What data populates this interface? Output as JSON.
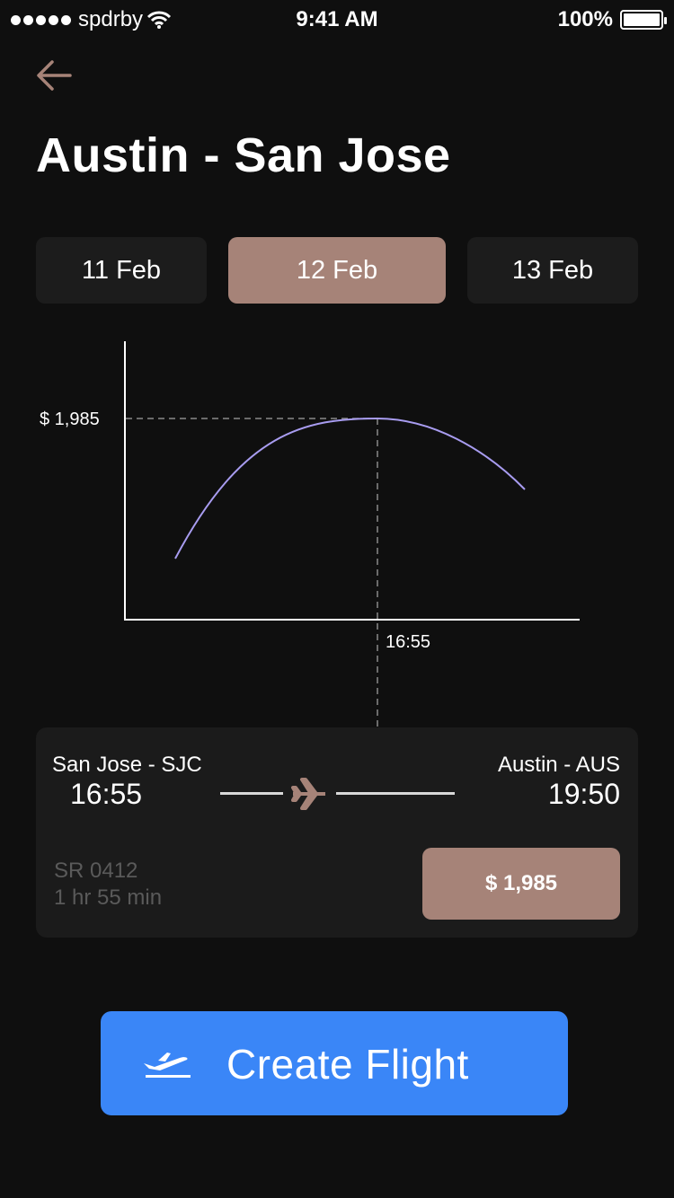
{
  "status_bar": {
    "carrier": "spdrby",
    "time": "9:41 AM",
    "battery": "100%"
  },
  "header": {
    "title": "Austin - San Jose"
  },
  "date_tabs": [
    {
      "label": "11 Feb",
      "active": false
    },
    {
      "label": "12 Feb",
      "active": true
    },
    {
      "label": "13 Feb",
      "active": false
    }
  ],
  "chart_data": {
    "type": "line",
    "highlight_price": "$ 1,985",
    "highlight_time": "16:55",
    "line_color": "#a89cf0"
  },
  "flight": {
    "from_city": "San Jose - SJC",
    "from_time": "16:55",
    "to_city": "Austin - AUS",
    "to_time": "19:50",
    "flight_number": "SR 0412",
    "duration": "1 hr 55 min",
    "price": "$ 1,985"
  },
  "action": {
    "create_label": "Create Flight"
  },
  "colors": {
    "accent": "#a68378",
    "primary_button": "#3a86f7",
    "background": "#0f0f0f"
  },
  "icons": [
    "back-arrow-icon",
    "plane-icon",
    "departure-plane-icon",
    "wifi-icon",
    "battery-icon"
  ]
}
